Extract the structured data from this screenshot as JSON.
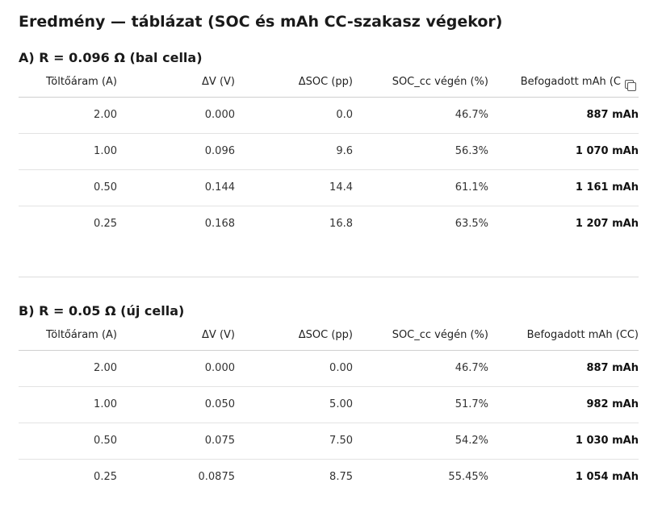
{
  "page": {
    "title": "Eredmény — táblázat (SOC és mAh CC-szakasz végekor)"
  },
  "columns": [
    "Töltőáram (A)",
    "ΔV (V)",
    "ΔSOC (pp)",
    "SOC_cc végén (%)",
    "Befogadott mAh (CC)"
  ],
  "icons": {
    "copy": "copy-icon"
  },
  "section_a": {
    "title": "A) R = 0.096 Ω (bal cella)",
    "header_last_visible": "Befogadott mAh (C",
    "rows": [
      {
        "current": "2.00",
        "dv": "0.000",
        "dsoc": "0.0",
        "soc": "46.7%",
        "mah": "887 mAh"
      },
      {
        "current": "1.00",
        "dv": "0.096",
        "dsoc": "9.6",
        "soc": "56.3%",
        "mah": "1 070 mAh"
      },
      {
        "current": "0.50",
        "dv": "0.144",
        "dsoc": "14.4",
        "soc": "61.1%",
        "mah": "1 161 mAh"
      },
      {
        "current": "0.25",
        "dv": "0.168",
        "dsoc": "16.8",
        "soc": "63.5%",
        "mah": "1 207 mAh"
      }
    ]
  },
  "section_b": {
    "title": "B) R = 0.05 Ω (új cella)",
    "rows": [
      {
        "current": "2.00",
        "dv": "0.000",
        "dsoc": "0.00",
        "soc": "46.7%",
        "mah": "887 mAh"
      },
      {
        "current": "1.00",
        "dv": "0.050",
        "dsoc": "5.00",
        "soc": "51.7%",
        "mah": "982 mAh"
      },
      {
        "current": "0.50",
        "dv": "0.075",
        "dsoc": "7.50",
        "soc": "54.2%",
        "mah": "1 030 mAh"
      },
      {
        "current": "0.25",
        "dv": "0.0875",
        "dsoc": "8.75",
        "soc": "55.45%",
        "mah": "1 054 mAh"
      }
    ]
  }
}
